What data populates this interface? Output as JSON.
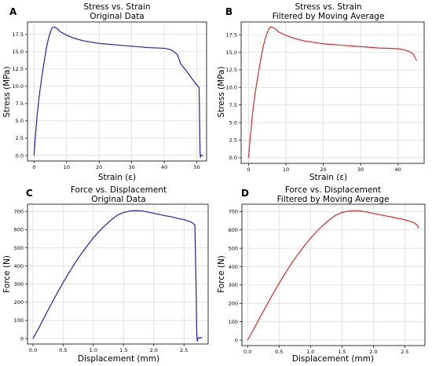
{
  "chart_data": [
    {
      "id": "A",
      "type": "line",
      "panel_label": "A",
      "title": [
        "Stress vs. Strain",
        "Original Data"
      ],
      "xlabel": "Strain (ε)",
      "ylabel": "Stress (MPa)",
      "xlim": [
        -2,
        53
      ],
      "ylim": [
        -0.8,
        19.3
      ],
      "xticks": [
        0,
        10,
        20,
        30,
        40,
        50
      ],
      "yticks": [
        0.0,
        2.5,
        5.0,
        7.5,
        10.0,
        12.5,
        15.0,
        17.5
      ],
      "ytick_labels": [
        "0.0",
        "2.5",
        "5.0",
        "7.5",
        "10.0",
        "12.5",
        "15.0",
        "17.5"
      ],
      "grid": true,
      "series": [
        {
          "color": "#1f1fb4",
          "x": [
            0,
            0.1,
            0.3,
            0.5,
            0.8,
            1.0,
            1.3,
            1.6,
            2.0,
            2.4,
            2.8,
            3.2,
            3.6,
            4.0,
            4.5,
            5.0,
            5.5,
            6.0,
            7.0,
            8.0,
            10.0,
            12.0,
            15.0,
            20.0,
            25.0,
            30.0,
            35.0,
            40.0,
            42.0,
            43.0,
            44.0,
            44.5,
            45.0,
            47.0,
            49.0,
            50.7,
            50.8,
            50.9,
            51.0,
            51.1,
            51.2,
            51.5,
            52.0
          ],
          "y": [
            0,
            0.8,
            2.0,
            3.3,
            4.8,
            6.0,
            7.3,
            8.6,
            10.0,
            11.3,
            12.6,
            13.8,
            15.0,
            16.0,
            17.0,
            17.8,
            18.4,
            18.6,
            18.4,
            17.9,
            17.4,
            17.0,
            16.6,
            16.2,
            16.0,
            15.8,
            15.6,
            15.5,
            15.3,
            15.0,
            14.6,
            14.0,
            13.3,
            12.1,
            10.8,
            9.8,
            7.0,
            3.0,
            0.5,
            -0.3,
            0.1,
            0.0,
            0.0
          ]
        }
      ]
    },
    {
      "id": "B",
      "type": "line",
      "panel_label": "B",
      "title": [
        "Stress vs. Strain",
        "Filtered by Moving Average"
      ],
      "xlabel": "Strain (ε)",
      "ylabel": "Stress (MPa)",
      "xlim": [
        -2,
        47
      ],
      "ylim": [
        -0.8,
        19.3
      ],
      "xticks": [
        0,
        10,
        20,
        30,
        40
      ],
      "yticks": [
        0.0,
        2.5,
        5.0,
        7.5,
        10.0,
        12.5,
        15.0,
        17.5
      ],
      "ytick_labels": [
        "0.0",
        "2.5",
        "5.0",
        "7.5",
        "10.0",
        "12.5",
        "15.0",
        "17.5"
      ],
      "grid": true,
      "series": [
        {
          "color": "#d62a2a",
          "x": [
            0,
            0.1,
            0.3,
            0.5,
            0.8,
            1.0,
            1.3,
            1.6,
            2.0,
            2.4,
            2.8,
            3.2,
            3.6,
            4.0,
            4.5,
            5.0,
            5.5,
            6.0,
            7.0,
            8.0,
            10.0,
            12.0,
            15.0,
            20.0,
            25.0,
            30.0,
            35.0,
            40.0,
            42.0,
            43.0,
            44.0,
            44.5,
            45.0
          ],
          "y": [
            0,
            0.8,
            2.0,
            3.3,
            4.8,
            6.0,
            7.3,
            8.6,
            10.0,
            11.3,
            12.6,
            13.8,
            15.0,
            16.0,
            17.0,
            17.8,
            18.4,
            18.6,
            18.4,
            17.9,
            17.4,
            17.0,
            16.6,
            16.2,
            16.0,
            15.8,
            15.6,
            15.5,
            15.3,
            15.1,
            14.8,
            14.3,
            13.8
          ]
        }
      ]
    },
    {
      "id": "C",
      "type": "line",
      "panel_label": "C",
      "title": [
        "Force vs. Displacement",
        "Original Data"
      ],
      "xlabel": "Displacement (mm)",
      "ylabel": "Force (N)",
      "xlim": [
        -0.09,
        2.9
      ],
      "ylim": [
        -30,
        740
      ],
      "xticks": [
        0.0,
        0.5,
        1.0,
        1.5,
        2.0,
        2.5
      ],
      "xtick_labels": [
        "0.0",
        "0.5",
        "1.0",
        "1.5",
        "2.0",
        "2.5"
      ],
      "yticks": [
        0,
        100,
        200,
        300,
        400,
        500,
        600,
        700
      ],
      "grid": true,
      "series": [
        {
          "color": "#1f1fb4",
          "x": [
            0,
            0.1,
            0.2,
            0.3,
            0.4,
            0.5,
            0.6,
            0.7,
            0.8,
            0.9,
            1.0,
            1.1,
            1.2,
            1.3,
            1.4,
            1.5,
            1.6,
            1.7,
            1.8,
            1.9,
            2.0,
            2.1,
            2.2,
            2.3,
            2.4,
            2.5,
            2.6,
            2.65,
            2.68,
            2.7,
            2.71,
            2.72,
            2.73,
            2.75,
            2.8
          ],
          "y": [
            0,
            60,
            125,
            188,
            250,
            308,
            365,
            418,
            467,
            512,
            555,
            592,
            625,
            655,
            680,
            695,
            702,
            705,
            703,
            697,
            690,
            683,
            676,
            670,
            662,
            655,
            645,
            635,
            625,
            300,
            50,
            -15,
            0,
            5,
            5
          ]
        }
      ]
    },
    {
      "id": "D",
      "type": "line",
      "panel_label": "D",
      "title": [
        "Force vs. Displacement",
        "Filtered by Moving Average"
      ],
      "xlabel": "Displacement (mm)",
      "ylabel": "Force (N)",
      "xlim": [
        -0.09,
        2.82
      ],
      "ylim": [
        -30,
        740
      ],
      "xticks": [
        0.0,
        0.5,
        1.0,
        1.5,
        2.0,
        2.5
      ],
      "xtick_labels": [
        "0.0",
        "0.5",
        "1.0",
        "1.5",
        "2.0",
        "2.5"
      ],
      "yticks": [
        0,
        100,
        200,
        300,
        400,
        500,
        600,
        700
      ],
      "grid": true,
      "series": [
        {
          "color": "#d62a2a",
          "x": [
            0,
            0.1,
            0.2,
            0.3,
            0.4,
            0.5,
            0.6,
            0.7,
            0.8,
            0.9,
            1.0,
            1.1,
            1.2,
            1.3,
            1.4,
            1.5,
            1.6,
            1.7,
            1.8,
            1.9,
            2.0,
            2.1,
            2.2,
            2.3,
            2.4,
            2.5,
            2.6,
            2.65,
            2.7,
            2.72
          ],
          "y": [
            0,
            60,
            125,
            188,
            250,
            308,
            365,
            418,
            467,
            512,
            555,
            592,
            625,
            655,
            680,
            695,
            702,
            705,
            703,
            697,
            690,
            683,
            676,
            670,
            662,
            655,
            645,
            638,
            625,
            610
          ]
        }
      ]
    }
  ]
}
